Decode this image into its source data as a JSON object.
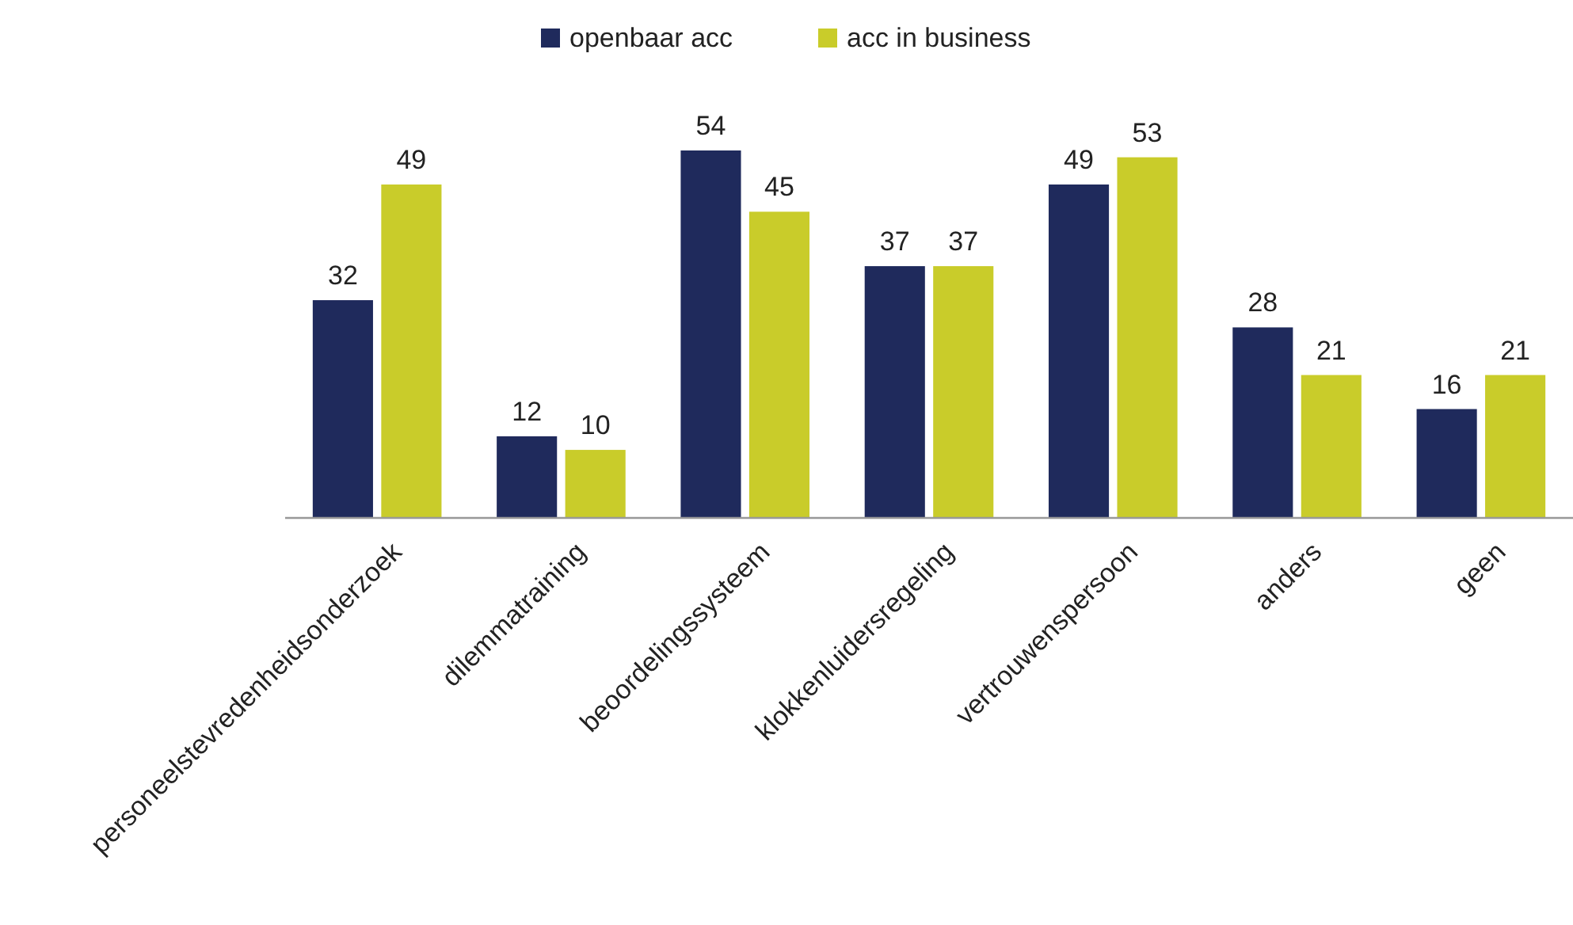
{
  "chart_data": {
    "type": "bar",
    "categories": [
      "personeelstevredenheidsonderzoek",
      "dilemmatraining",
      "beoordelingssysteem",
      "klokkenluidersregeling",
      "vertrouwenspersoon",
      "anders",
      "geen"
    ],
    "series": [
      {
        "name": "openbaar acc",
        "color": "#1f2a5c",
        "values": [
          32,
          12,
          54,
          37,
          49,
          28,
          16
        ]
      },
      {
        "name": "acc in business",
        "color": "#c9cc2a",
        "values": [
          49,
          10,
          45,
          37,
          53,
          21,
          21
        ]
      }
    ],
    "data_labels": true,
    "legend": "top"
  }
}
